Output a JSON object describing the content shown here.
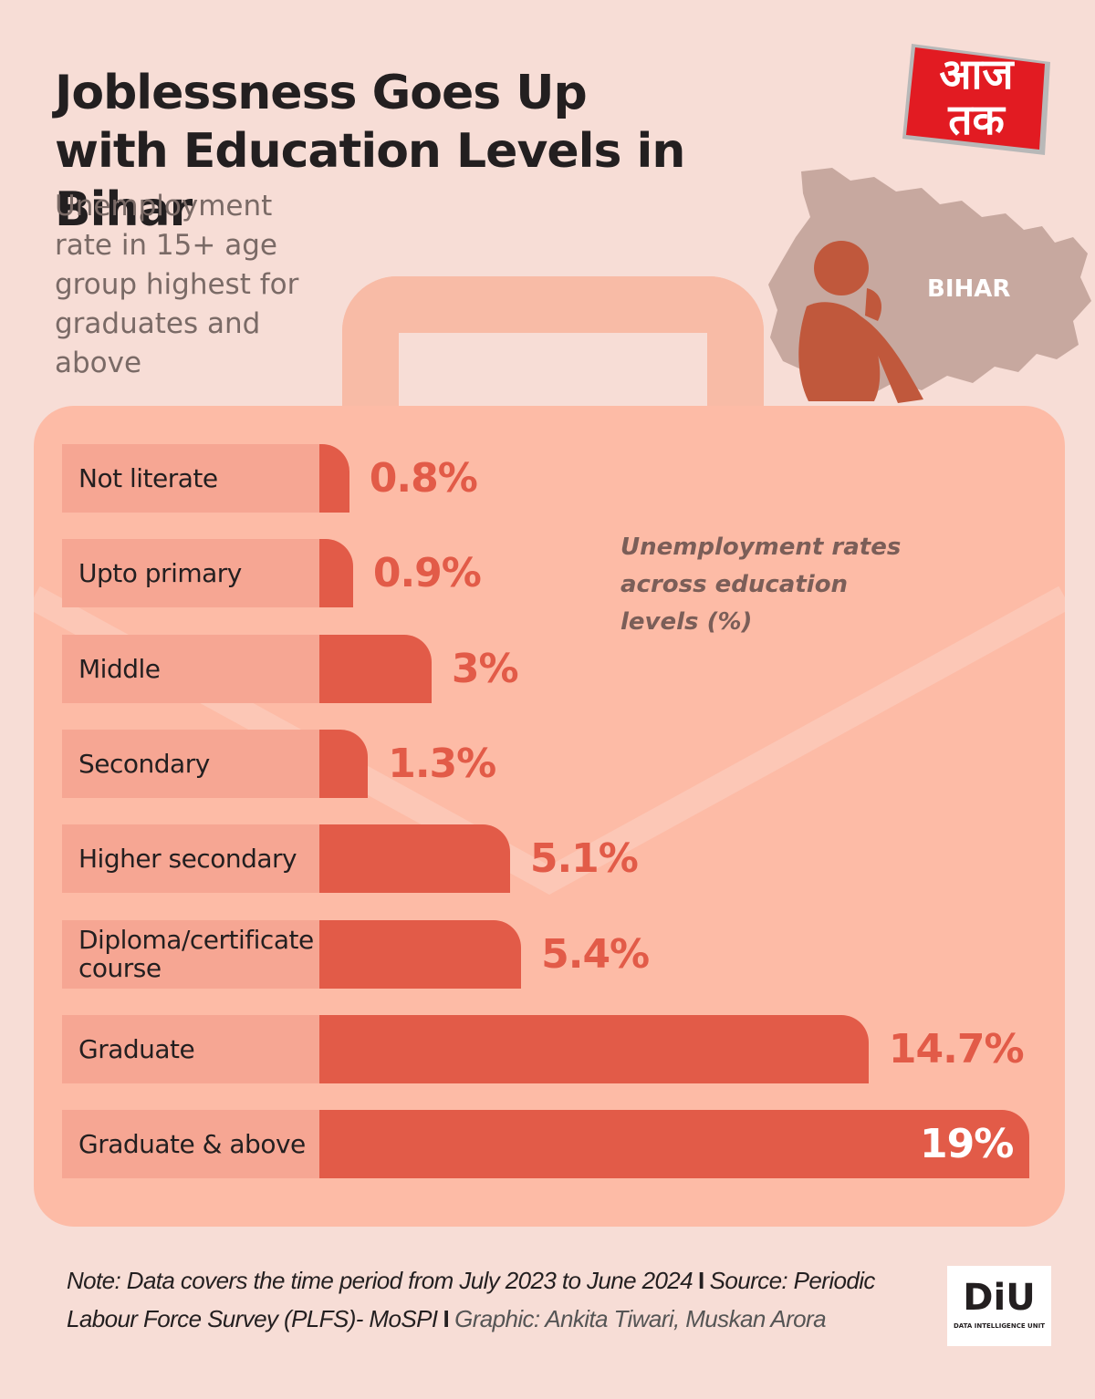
{
  "header": {
    "title": "Joblessness Goes Up with Education Levels in Bihar",
    "subtitle": "Unemployment rate in 15+ age group highest for graduates and above"
  },
  "logo": {
    "text": "आज\nतक",
    "color": "#e21b22"
  },
  "map": {
    "label": "BIHAR",
    "icon": "person-sitting-icon"
  },
  "colors": {
    "background": "#f7ddd6",
    "bag": "#fdbba6",
    "label_bg": "#f6a693",
    "bar": "#e25b48"
  },
  "chart_data": {
    "type": "bar",
    "orientation": "horizontal",
    "title": "Unemployment rates across education levels (%)",
    "categories": [
      "Not literate",
      "Upto primary",
      "Middle",
      "Secondary",
      "Higher secondary",
      "Diploma/certificate course",
      "Graduate",
      "Graduate & above"
    ],
    "values": [
      0.8,
      0.9,
      3,
      1.3,
      5.1,
      5.4,
      14.7,
      19
    ],
    "value_labels": [
      "0.8%",
      "0.9%",
      "3%",
      "1.3%",
      "5.1%",
      "5.4%",
      "14.7%",
      "19%"
    ],
    "unit": "%",
    "xlim": [
      0,
      19
    ]
  },
  "footer": {
    "note": "Note: Data covers the time period from July 2023 to June 2024",
    "source": "Source: Periodic Labour Force Survey (PLFS)- MoSPI",
    "graphic": "Graphic: Ankita Tiwari, Muskan Arora",
    "separator": "I"
  },
  "diu": {
    "name": "DiU",
    "tagline": "DATA INTELLIGENCE UNIT"
  }
}
